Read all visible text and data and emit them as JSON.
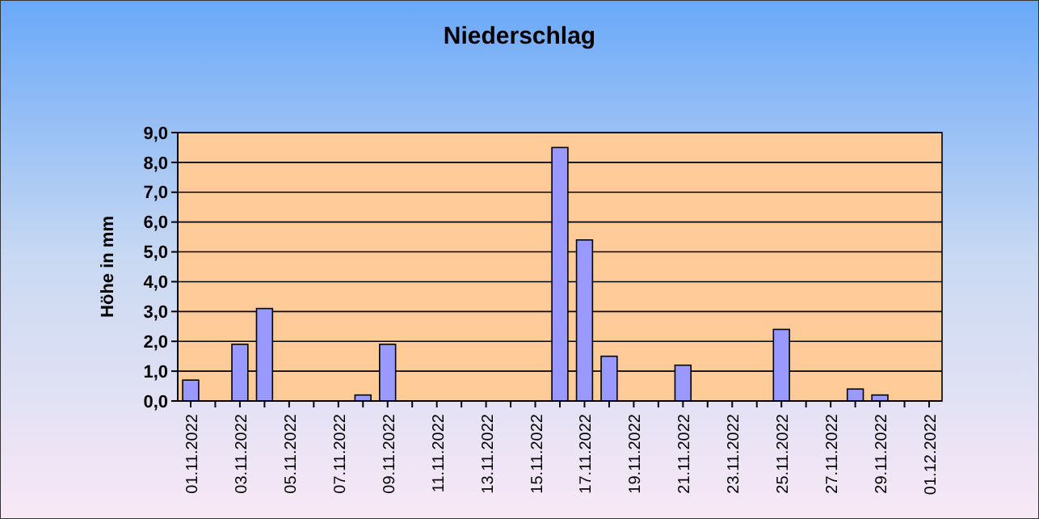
{
  "chart_data": {
    "type": "bar",
    "title": "Niederschlag",
    "ylabel": "Höhe in mm",
    "categories": [
      "01.11.2022",
      null,
      "03.11.2022",
      null,
      "05.11.2022",
      null,
      "07.11.2022",
      null,
      "09.11.2022",
      null,
      "11.11.2022",
      null,
      "13.11.2022",
      null,
      "15.11.2022",
      null,
      "17.11.2022",
      null,
      "19.11.2022",
      null,
      "21.11.2022",
      null,
      "23.11.2022",
      null,
      "25.11.2022",
      null,
      "27.11.2022",
      null,
      "29.11.2022",
      null,
      "01.12.2022"
    ],
    "values": [
      0.7,
      0,
      1.9,
      3.1,
      0,
      0,
      0,
      0.2,
      1.9,
      0,
      0,
      0,
      0,
      0,
      0,
      8.5,
      5.4,
      1.5,
      0,
      0,
      1.2,
      0,
      0,
      0,
      2.4,
      0,
      0,
      0.4,
      0.2,
      0,
      0
    ],
    "color": "#9999ff",
    "ylim": [
      0,
      9
    ],
    "yticks": [
      {
        "value": 0,
        "label": "0,0"
      },
      {
        "value": 1,
        "label": "1,0"
      },
      {
        "value": 2,
        "label": "2,0"
      },
      {
        "value": 3,
        "label": "3,0"
      },
      {
        "value": 4,
        "label": "4,0"
      },
      {
        "value": 5,
        "label": "5,0"
      },
      {
        "value": 6,
        "label": "6,0"
      },
      {
        "value": 7,
        "label": "7,0"
      },
      {
        "value": 8,
        "label": "8,0"
      },
      {
        "value": 9,
        "label": "9,0"
      }
    ],
    "grid": "y"
  }
}
